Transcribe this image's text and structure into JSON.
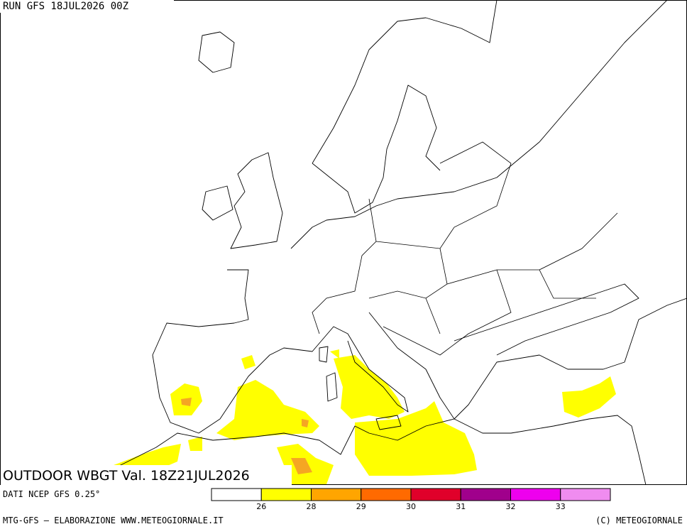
{
  "header": {
    "run": "RUN GFS 18JUL2026 00Z"
  },
  "title": "OUTDOOR WBGT Val. 18Z21JUL2026",
  "source": "DATI NCEP GFS 0.25°",
  "legend": {
    "colors": [
      "#ffffff",
      "#ffff00",
      "#ffa500",
      "#ff6a00",
      "#e0002a",
      "#a0008c",
      "#ee00ee",
      "#f08cf0"
    ],
    "ticks": [
      26,
      28,
      29,
      30,
      31,
      32,
      33
    ]
  },
  "footer": {
    "left": "MTG-GFS – ELABORAZIONE WWW.METEOGIORNALE.IT",
    "right": "(C) METEOGIORNALE"
  }
}
